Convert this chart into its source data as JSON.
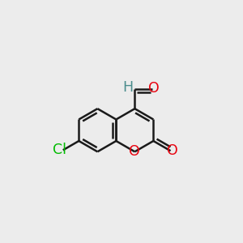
{
  "background_color": "#ececec",
  "bond_color": "#1a1a1a",
  "bond_width": 1.8,
  "figsize": [
    3.0,
    3.0
  ],
  "dpi": 100,
  "atom_colors": {
    "O": "#e8000d",
    "Cl": "#00bb00",
    "H": "#4a8c8c",
    "C": "#1a1a1a"
  }
}
